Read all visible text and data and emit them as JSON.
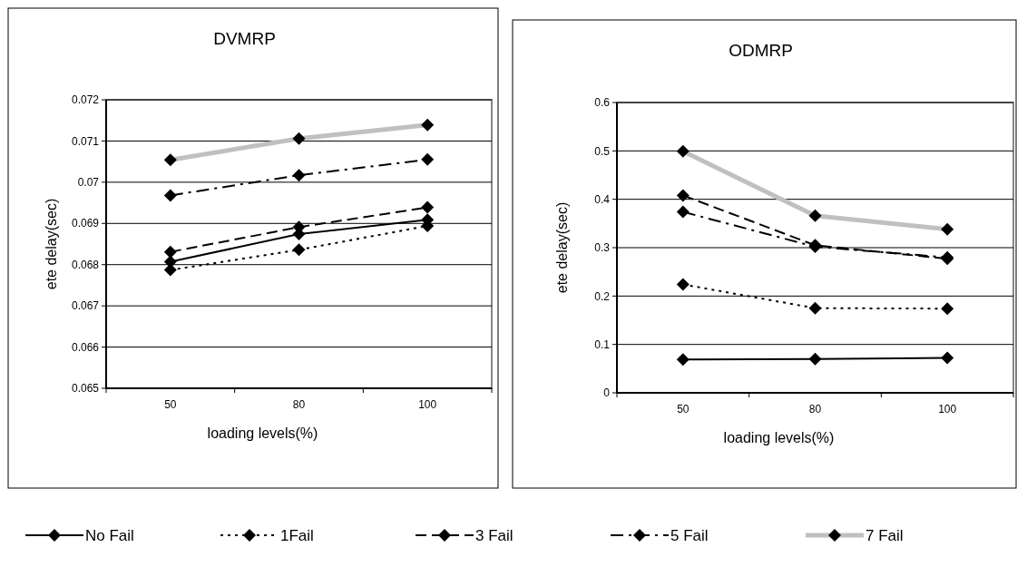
{
  "chart_data": [
    {
      "type": "line",
      "title": "DVMRP",
      "xlabel": "loading levels(%)",
      "ylabel": "ete delay(sec)",
      "categories": [
        "50",
        "80",
        "100"
      ],
      "ylim": [
        0.065,
        0.072
      ],
      "yticks": [
        0.065,
        0.066,
        0.067,
        0.068,
        0.069,
        0.07,
        0.071,
        0.072
      ],
      "grid": "y",
      "marker": "diamond",
      "legend": "bottom",
      "series": [
        {
          "name": "No Fail",
          "color": "#000000",
          "line_style": "solid",
          "values": [
            0.06807,
            0.06874,
            0.06909
          ]
        },
        {
          "name": "1Fail",
          "color": "#000000",
          "line_style": "dotted",
          "values": [
            0.06787,
            0.06836,
            0.06894
          ]
        },
        {
          "name": "3 Fail",
          "color": "#000000",
          "line_style": "dashed",
          "values": [
            0.06831,
            0.06891,
            0.06939
          ]
        },
        {
          "name": "5 Fail",
          "color": "#000000",
          "line_style": "dashdot",
          "values": [
            0.06968,
            0.07017,
            0.07055
          ]
        },
        {
          "name": "7 Fail",
          "color": "#c0c0c0",
          "line_style": "solid",
          "values": [
            0.07054,
            0.07106,
            0.07139
          ]
        }
      ]
    },
    {
      "type": "line",
      "title": "ODMRP",
      "xlabel": "loading levels(%)",
      "ylabel": "ete delay(sec)",
      "categories": [
        "50",
        "80",
        "100"
      ],
      "ylim": [
        0,
        0.6
      ],
      "yticks": [
        0,
        0.1,
        0.2,
        0.3,
        0.4,
        0.5,
        0.6
      ],
      "grid": "y",
      "marker": "diamond",
      "legend": "bottom",
      "series": [
        {
          "name": "No Fail",
          "color": "#000000",
          "line_style": "solid",
          "values": [
            0.069,
            0.07,
            0.072
          ]
        },
        {
          "name": "1Fail",
          "color": "#000000",
          "line_style": "dotted",
          "values": [
            0.224,
            0.175,
            0.174
          ]
        },
        {
          "name": "3 Fail",
          "color": "#000000",
          "line_style": "dashed",
          "values": [
            0.408,
            0.305,
            0.277
          ]
        },
        {
          "name": "5 Fail",
          "color": "#000000",
          "line_style": "dashdot",
          "values": [
            0.374,
            0.302,
            0.28
          ]
        },
        {
          "name": "7 Fail",
          "color": "#c0c0c0",
          "line_style": "solid",
          "values": [
            0.499,
            0.366,
            0.338
          ]
        }
      ]
    }
  ]
}
